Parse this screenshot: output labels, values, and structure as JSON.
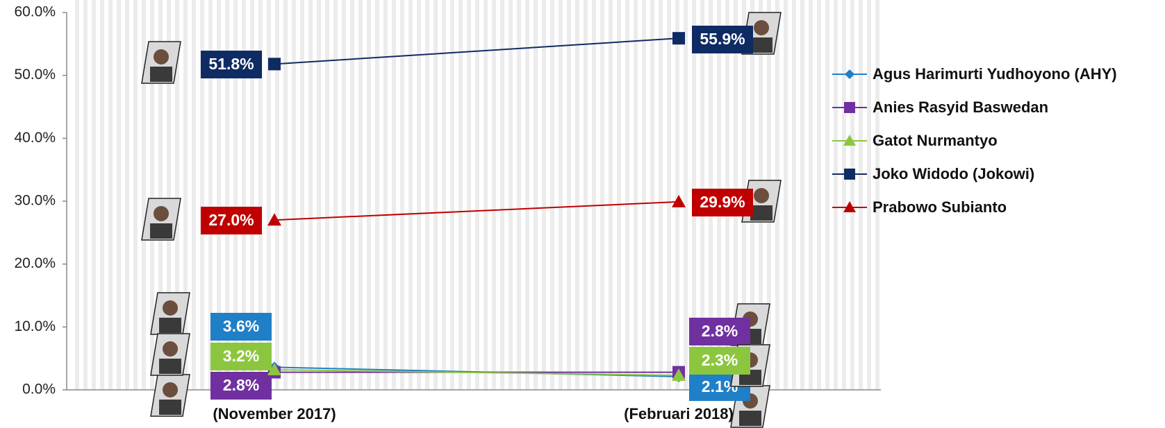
{
  "chart_data": {
    "type": "line",
    "categories": [
      "(November 2017)",
      "(Februari 2018)"
    ],
    "ylim": [
      0,
      60
    ],
    "yticks": [
      {
        "value": 0,
        "label": "0.0%"
      },
      {
        "value": 10,
        "label": "10.0%"
      },
      {
        "value": 20,
        "label": "20.0%"
      },
      {
        "value": 30,
        "label": "30.0%"
      },
      {
        "value": 40,
        "label": "40.0%"
      },
      {
        "value": 50,
        "label": "50.0%"
      },
      {
        "value": 60,
        "label": "60.0%"
      }
    ],
    "legend": "right",
    "series": [
      {
        "name": "Agus Harimurti Yudhoyono (AHY)",
        "color": "#1f7fc7",
        "marker": "diamond",
        "values": [
          3.6,
          2.1
        ],
        "value_labels": [
          "3.6%",
          "2.1%"
        ]
      },
      {
        "name": "Anies Rasyid Baswedan",
        "color": "#7030a0",
        "marker": "square",
        "values": [
          2.8,
          2.8
        ],
        "value_labels": [
          "2.8%",
          "2.8%"
        ]
      },
      {
        "name": "Gatot Nurmantyo",
        "color": "#8cc63f",
        "marker": "triangle",
        "values": [
          3.2,
          2.3
        ],
        "value_labels": [
          "3.2%",
          "2.3%"
        ]
      },
      {
        "name": "Joko Widodo (Jokowi)",
        "color": "#0f2b63",
        "marker": "square",
        "values": [
          51.8,
          55.9
        ],
        "value_labels": [
          "51.8%",
          "55.9%"
        ]
      },
      {
        "name": "Prabowo Subianto",
        "color": "#c00000",
        "marker": "triangle",
        "values": [
          27.0,
          29.9
        ],
        "value_labels": [
          "27.0%",
          "29.9%"
        ]
      }
    ]
  }
}
